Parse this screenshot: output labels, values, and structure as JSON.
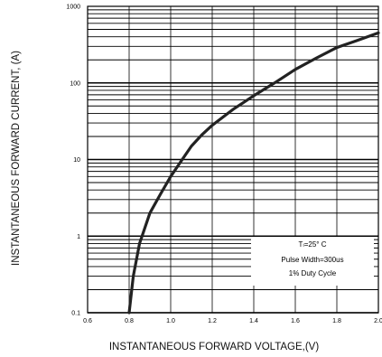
{
  "chart_data": {
    "type": "line",
    "xlabel": "INSTANTANEOUS FORWARD VOLTAGE,(V)",
    "ylabel": "INSTANTANEOUS FORWARD CURRENT,  (A)",
    "xlim": [
      0.6,
      2.0
    ],
    "ylim": [
      0.1,
      1000
    ],
    "yscale": "log",
    "grid": true,
    "x_ticks": [
      "0.6",
      "0.8",
      "1.0",
      "1.2",
      "1.4",
      "1.6",
      "1.8",
      "2.0"
    ],
    "y_ticks": [
      "0.1",
      "1",
      "10",
      "100",
      "1000"
    ],
    "annotation": {
      "line1": "Tₗ=25° C",
      "line2": "Pulse Width=300us",
      "line3": "1% Duty Cycle"
    },
    "series": [
      {
        "x": [
          0.8,
          0.82,
          0.85,
          0.9,
          0.95,
          1.0,
          1.05,
          1.1,
          1.15,
          1.2,
          1.3,
          1.4,
          1.5,
          1.6,
          1.7,
          1.8,
          1.9,
          2.0
        ],
        "y": [
          0.1,
          0.3,
          0.8,
          2.0,
          3.5,
          6.0,
          9.5,
          15,
          21,
          28,
          45,
          68,
          100,
          150,
          210,
          290,
          360,
          450
        ]
      }
    ]
  }
}
